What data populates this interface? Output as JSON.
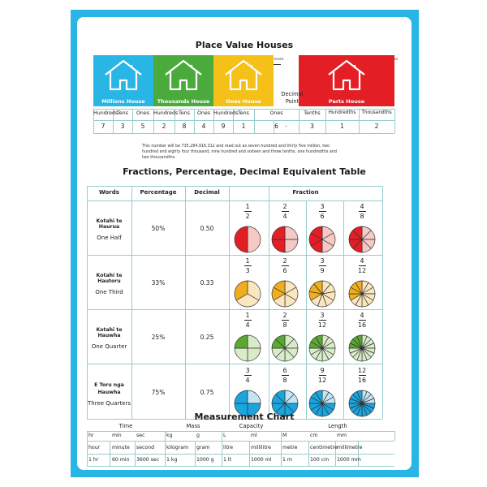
{
  "poster": {
    "pv": {
      "title": "Place Value Houses",
      "note_left": "Numbers left of a decimal point are one or more.",
      "note_right": "Numbers right of a decimal point are less than one.",
      "houses": [
        {
          "label": "Millions House",
          "color": "#29b6e6"
        },
        {
          "label": "Thousands House",
          "color": "#4aab3c"
        },
        {
          "label": "Ones House",
          "color": "#f5c018"
        },
        {
          "label": "Parts House",
          "color": "#e31e24"
        }
      ],
      "decimal_label_1": "Decimal",
      "decimal_label_2": "Point",
      "cols": [
        "Hundreds",
        "Tens",
        "Ones",
        "Hundreds",
        "Tens",
        "Ones",
        "Hundreds",
        "Tens",
        "Ones",
        "Tenths",
        "Hundredths",
        "Thousandths"
      ],
      "digits": [
        "7",
        "3",
        "5",
        "2",
        "8",
        "4",
        "9",
        "1",
        "6",
        "3",
        "1",
        "2"
      ],
      "dot": ".",
      "sentence": "This number will be 735,284,916.312 and read out as seven hundred and thirty five million, two hundred and eighty four thousand, nine hundred and sixteen and three tenths, one hundredths and two thousandths."
    },
    "fpd": {
      "title": "Fractions, Percentage, Decimal Equivalent Table",
      "headers": {
        "words": "Words",
        "percentage": "Percentage",
        "decimal": "Decimal",
        "fraction": "Fraction"
      },
      "rows": [
        {
          "mi": "Kotahi te Haurua",
          "en": "One Half",
          "mi2": "",
          "pct": "50%",
          "dec": "0.50",
          "color": "#e31e24",
          "light": "#f6c9c4",
          "fractions": [
            {
              "n": "1",
              "d": "2"
            },
            {
              "n": "2",
              "d": "4"
            },
            {
              "n": "3",
              "d": "6"
            },
            {
              "n": "4",
              "d": "8"
            }
          ]
        },
        {
          "mi": "Kotahi te Hautoru",
          "en": "One Third",
          "mi2": "",
          "pct": "33%",
          "dec": "0.33",
          "color": "#f1ae1c",
          "light": "#fbe6bf",
          "fractions": [
            {
              "n": "1",
              "d": "3"
            },
            {
              "n": "2",
              "d": "6"
            },
            {
              "n": "3",
              "d": "9"
            },
            {
              "n": "4",
              "d": "12"
            }
          ]
        },
        {
          "mi": "Kotahi te Hauwha",
          "en": "One Quarter",
          "mi2": "",
          "pct": "25%",
          "dec": "0.25",
          "color": "#5aa832",
          "light": "#d8ecc8",
          "fractions": [
            {
              "n": "1",
              "d": "4"
            },
            {
              "n": "2",
              "d": "8"
            },
            {
              "n": "3",
              "d": "12"
            },
            {
              "n": "4",
              "d": "16"
            }
          ]
        },
        {
          "mi": "E Toru nga",
          "en": "Three Quarters",
          "mi2": "Hauwha",
          "pct": "75%",
          "dec": "0.75",
          "color": "#1aa5de",
          "light": "#c3e6f6",
          "fractions": [
            {
              "n": "3",
              "d": "4"
            },
            {
              "n": "6",
              "d": "8"
            },
            {
              "n": "9",
              "d": "12"
            },
            {
              "n": "12",
              "d": "16"
            }
          ]
        }
      ]
    },
    "meas": {
      "title": "Measurement Chart",
      "groups": [
        "Time",
        "Mass",
        "Capacity",
        "Length"
      ],
      "abbr": [
        "hr",
        "min",
        "sec",
        "kg",
        "g",
        "L",
        "ml",
        "M",
        "cm",
        "mm"
      ],
      "names": [
        "hour",
        "minute",
        "second",
        "kilogram",
        "gram",
        "litre",
        "millilitre",
        "metre",
        "centimetre",
        "millimetre"
      ],
      "values": [
        "1 hr",
        "60 min",
        "3600 sec",
        "1 kg",
        "1000 g",
        "1 lt",
        "1000 ml",
        "1 m",
        "100 cm",
        "1000 mm"
      ]
    }
  }
}
